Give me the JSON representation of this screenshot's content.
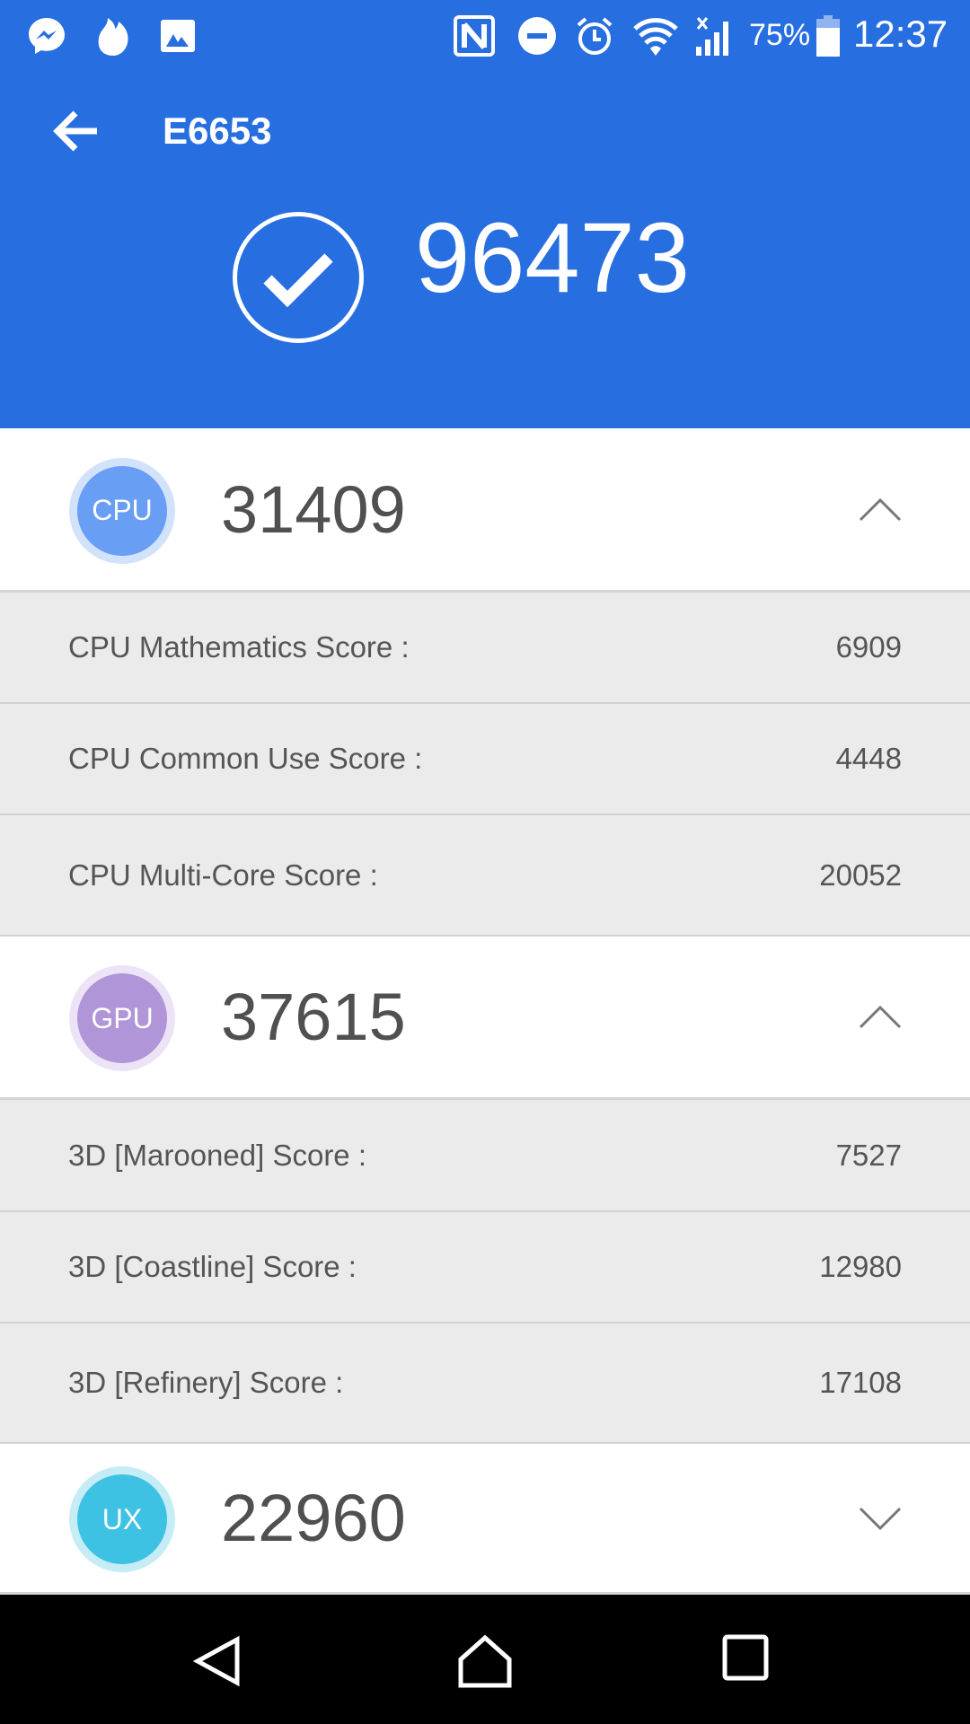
{
  "status_bar": {
    "battery": "75%",
    "time": "12:37",
    "icons": [
      "messenger-icon",
      "tinder-icon",
      "image-icon",
      "nfc-icon",
      "dnd-icon",
      "alarm-icon",
      "wifi-icon",
      "signal-icon",
      "battery-icon"
    ]
  },
  "header": {
    "title": "E6653",
    "total_score": "96473",
    "accent": "#276ee0"
  },
  "sections": [
    {
      "label": "CPU",
      "score": "31409",
      "expanded": true,
      "color": "#699ef5",
      "ring": "#d2e2fb",
      "rows": [
        {
          "label": "CPU Mathematics Score :",
          "value": "6909"
        },
        {
          "label": "CPU Common Use Score :",
          "value": "4448"
        },
        {
          "label": "CPU Multi-Core Score :",
          "value": "20052"
        }
      ]
    },
    {
      "label": "GPU",
      "score": "37615",
      "expanded": true,
      "color": "#b096d9",
      "ring": "#ece4f6",
      "rows": [
        {
          "label": "3D [Marooned] Score :",
          "value": "7527"
        },
        {
          "label": "3D [Coastline] Score :",
          "value": "12980"
        },
        {
          "label": "3D [Refinery] Score :",
          "value": "17108"
        }
      ]
    },
    {
      "label": "UX",
      "score": "22960",
      "expanded": false,
      "color": "#3ec2e3",
      "ring": "#c6ecf6",
      "rows": []
    }
  ]
}
